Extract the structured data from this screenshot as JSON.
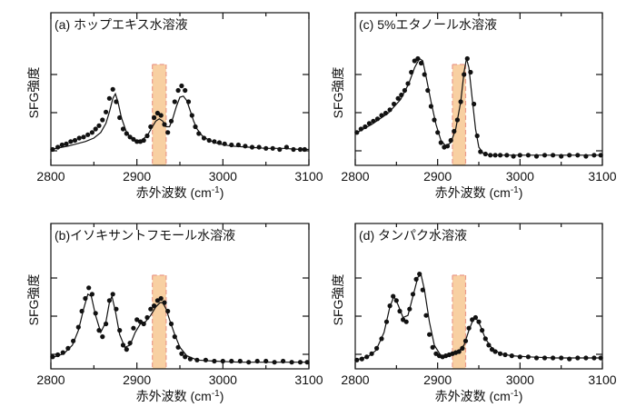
{
  "highlight": {
    "band_color": "#f7c892",
    "edge_color": "#ea9a8a"
  },
  "chart_data": [
    {
      "type": "scatter",
      "title": "(a) ホップエキス水溶液",
      "xlabel": "赤外波数 (cm",
      "xlabel_sup": "-1",
      "xlabel_end": ")",
      "ylabel": "SFG強度",
      "xlim": [
        2800,
        3100
      ],
      "ylim": [
        0,
        1
      ],
      "xticks": [
        "2800",
        "2900",
        "3000",
        "3100"
      ],
      "highlight_x": [
        2918,
        2934
      ],
      "series": [
        {
          "kind": "points",
          "x": [
            2802,
            2808,
            2813,
            2818,
            2823,
            2828,
            2833,
            2838,
            2843,
            2848,
            2852,
            2856,
            2860,
            2864,
            2868,
            2872,
            2876,
            2880,
            2884,
            2888,
            2892,
            2896,
            2900,
            2904,
            2908,
            2912,
            2916,
            2920,
            2924,
            2928,
            2932,
            2936,
            2940,
            2944,
            2948,
            2952,
            2956,
            2960,
            2964,
            2968,
            2972,
            2978,
            2984,
            2990,
            2996,
            3002,
            3010,
            3018,
            3026,
            3034,
            3042,
            3050,
            3058,
            3066,
            3074,
            3082,
            3090,
            3095
          ],
          "y": [
            0.1,
            0.12,
            0.14,
            0.15,
            0.17,
            0.18,
            0.2,
            0.21,
            0.23,
            0.25,
            0.28,
            0.31,
            0.36,
            0.43,
            0.55,
            0.63,
            0.52,
            0.38,
            0.28,
            0.24,
            0.21,
            0.19,
            0.17,
            0.17,
            0.18,
            0.22,
            0.3,
            0.38,
            0.42,
            0.4,
            0.32,
            0.25,
            0.35,
            0.52,
            0.62,
            0.66,
            0.62,
            0.52,
            0.4,
            0.3,
            0.24,
            0.2,
            0.18,
            0.17,
            0.16,
            0.15,
            0.14,
            0.14,
            0.13,
            0.12,
            0.12,
            0.11,
            0.11,
            0.1,
            0.12,
            0.1,
            0.1,
            0.1
          ]
        },
        {
          "kind": "fit",
          "x": [
            2800,
            2820,
            2840,
            2850,
            2858,
            2864,
            2868,
            2872,
            2875,
            2878,
            2882,
            2888,
            2896,
            2905,
            2912,
            2918,
            2922,
            2926,
            2930,
            2934,
            2938,
            2942,
            2946,
            2950,
            2954,
            2958,
            2962,
            2966,
            2970,
            2976,
            2984,
            2995,
            3010,
            3030,
            3050,
            3070,
            3090,
            3100
          ],
          "y": [
            0.1,
            0.13,
            0.17,
            0.2,
            0.25,
            0.33,
            0.43,
            0.55,
            0.59,
            0.52,
            0.38,
            0.25,
            0.18,
            0.18,
            0.22,
            0.3,
            0.35,
            0.37,
            0.35,
            0.3,
            0.3,
            0.38,
            0.48,
            0.56,
            0.57,
            0.53,
            0.44,
            0.35,
            0.28,
            0.22,
            0.18,
            0.15,
            0.13,
            0.12,
            0.11,
            0.11,
            0.1,
            0.1
          ]
        }
      ]
    },
    {
      "type": "scatter",
      "title": "(c)  5%エタノール水溶液",
      "xlabel": "赤外波数 (cm",
      "xlabel_sup": "-1",
      "xlabel_end": ")",
      "ylabel": "SFG強度",
      "xlim": [
        2800,
        3100
      ],
      "ylim": [
        0,
        1
      ],
      "xticks": [
        "2800",
        "2900",
        "3000",
        "3100"
      ],
      "highlight_x": [
        2918,
        2934
      ],
      "series": [
        {
          "kind": "points",
          "x": [
            2802,
            2807,
            2812,
            2817,
            2822,
            2827,
            2832,
            2837,
            2842,
            2847,
            2852,
            2856,
            2860,
            2864,
            2868,
            2872,
            2876,
            2880,
            2884,
            2888,
            2892,
            2896,
            2900,
            2904,
            2908,
            2912,
            2916,
            2920,
            2924,
            2928,
            2932,
            2936,
            2940,
            2944,
            2948,
            2952,
            2958,
            2964,
            2970,
            2976,
            2984,
            2992,
            3000,
            3010,
            3020,
            3030,
            3040,
            3050,
            3060,
            3070,
            3080,
            3090,
            3098
          ],
          "y": [
            0.25,
            0.28,
            0.3,
            0.33,
            0.35,
            0.37,
            0.4,
            0.42,
            0.45,
            0.5,
            0.55,
            0.58,
            0.62,
            0.68,
            0.78,
            0.88,
            0.9,
            0.86,
            0.76,
            0.62,
            0.48,
            0.36,
            0.25,
            0.16,
            0.12,
            0.13,
            0.18,
            0.26,
            0.36,
            0.52,
            0.76,
            0.9,
            0.78,
            0.5,
            0.22,
            0.08,
            0.06,
            0.05,
            0.05,
            0.05,
            0.05,
            0.04,
            0.05,
            0.05,
            0.04,
            0.05,
            0.05,
            0.04,
            0.05,
            0.05,
            0.04,
            0.05,
            0.05
          ]
        },
        {
          "kind": "fit",
          "x": [
            2800,
            2820,
            2840,
            2855,
            2865,
            2872,
            2878,
            2882,
            2886,
            2892,
            2898,
            2904,
            2910,
            2916,
            2922,
            2928,
            2932,
            2935,
            2938,
            2942,
            2946,
            2950,
            2956,
            2965,
            2980,
            3000,
            3050,
            3100
          ],
          "y": [
            0.24,
            0.32,
            0.42,
            0.54,
            0.68,
            0.82,
            0.9,
            0.88,
            0.74,
            0.52,
            0.32,
            0.18,
            0.13,
            0.16,
            0.28,
            0.52,
            0.78,
            0.9,
            0.82,
            0.55,
            0.28,
            0.12,
            0.06,
            0.05,
            0.05,
            0.05,
            0.05,
            0.05
          ]
        }
      ]
    },
    {
      "type": "scatter",
      "title": "(b)イソキサントフモール水溶液",
      "xlabel": "赤外波数 (cm",
      "xlabel_sup": "-1",
      "xlabel_end": ")",
      "ylabel": "SFG強度",
      "xlim": [
        2800,
        3100
      ],
      "ylim": [
        0,
        1
      ],
      "xticks": [
        "2800",
        "2900",
        "3000",
        "3100"
      ],
      "highlight_x": [
        2918,
        2934
      ],
      "series": [
        {
          "kind": "points",
          "x": [
            2802,
            2808,
            2814,
            2820,
            2826,
            2832,
            2836,
            2840,
            2844,
            2848,
            2852,
            2856,
            2860,
            2864,
            2868,
            2872,
            2876,
            2880,
            2884,
            2888,
            2892,
            2896,
            2900,
            2904,
            2908,
            2912,
            2916,
            2920,
            2924,
            2928,
            2932,
            2936,
            2940,
            2944,
            2948,
            2952,
            2956,
            2962,
            2970,
            2980,
            2990,
            3000,
            3010,
            3020,
            3030,
            3040,
            3050,
            3060,
            3070,
            3080,
            3090,
            3098
          ],
          "y": [
            0.07,
            0.09,
            0.11,
            0.15,
            0.22,
            0.35,
            0.5,
            0.62,
            0.72,
            0.66,
            0.48,
            0.32,
            0.26,
            0.38,
            0.6,
            0.66,
            0.52,
            0.32,
            0.18,
            0.14,
            0.2,
            0.34,
            0.42,
            0.4,
            0.38,
            0.44,
            0.52,
            0.55,
            0.6,
            0.62,
            0.58,
            0.5,
            0.38,
            0.26,
            0.16,
            0.1,
            0.07,
            0.05,
            0.04,
            0.04,
            0.03,
            0.03,
            0.03,
            0.03,
            0.02,
            0.03,
            0.03,
            0.02,
            0.03,
            0.02,
            0.02,
            0.02
          ]
        },
        {
          "kind": "fit",
          "x": [
            2800,
            2815,
            2825,
            2832,
            2838,
            2843,
            2847,
            2852,
            2858,
            2864,
            2868,
            2871,
            2875,
            2880,
            2886,
            2892,
            2898,
            2904,
            2910,
            2916,
            2922,
            2927,
            2930,
            2934,
            2938,
            2944,
            2950,
            2958,
            2970,
            2990,
            3020,
            3060,
            3100
          ],
          "y": [
            0.06,
            0.1,
            0.18,
            0.32,
            0.52,
            0.66,
            0.64,
            0.46,
            0.3,
            0.4,
            0.58,
            0.64,
            0.5,
            0.28,
            0.16,
            0.18,
            0.3,
            0.38,
            0.4,
            0.46,
            0.54,
            0.58,
            0.58,
            0.52,
            0.42,
            0.28,
            0.16,
            0.08,
            0.04,
            0.03,
            0.02,
            0.02,
            0.02
          ]
        }
      ]
    },
    {
      "type": "scatter",
      "title": "(d)  タンパク水溶液",
      "xlabel": "赤外波数 (cm",
      "xlabel_sup": "-1",
      "xlabel_end": ")",
      "ylabel": "SFG強度",
      "xlim": [
        2800,
        3100
      ],
      "ylim": [
        0,
        1
      ],
      "xticks": [
        "2800",
        "2900",
        "3000",
        "3100"
      ],
      "highlight_x": [
        2918,
        2934
      ],
      "series": [
        {
          "kind": "points",
          "x": [
            2802,
            2808,
            2814,
            2820,
            2826,
            2832,
            2838,
            2842,
            2846,
            2850,
            2854,
            2858,
            2862,
            2866,
            2870,
            2874,
            2878,
            2882,
            2886,
            2890,
            2894,
            2898,
            2902,
            2906,
            2910,
            2914,
            2918,
            2922,
            2926,
            2930,
            2934,
            2938,
            2942,
            2946,
            2950,
            2954,
            2958,
            2962,
            2966,
            2970,
            2976,
            2982,
            2990,
            3000,
            3010,
            3020,
            3030,
            3040,
            3050,
            3060,
            3070,
            3080,
            3090,
            3098
          ],
          "y": [
            0.04,
            0.05,
            0.07,
            0.1,
            0.15,
            0.24,
            0.4,
            0.55,
            0.64,
            0.6,
            0.5,
            0.42,
            0.4,
            0.52,
            0.66,
            0.8,
            0.85,
            0.7,
            0.46,
            0.28,
            0.16,
            0.1,
            0.08,
            0.07,
            0.08,
            0.09,
            0.1,
            0.11,
            0.12,
            0.15,
            0.22,
            0.34,
            0.42,
            0.44,
            0.4,
            0.32,
            0.24,
            0.18,
            0.14,
            0.12,
            0.1,
            0.09,
            0.08,
            0.07,
            0.07,
            0.06,
            0.06,
            0.06,
            0.06,
            0.05,
            0.06,
            0.06,
            0.06,
            0.06
          ]
        },
        {
          "kind": "fit",
          "x": [
            2800,
            2815,
            2825,
            2835,
            2842,
            2847,
            2852,
            2858,
            2864,
            2870,
            2876,
            2880,
            2884,
            2890,
            2896,
            2904,
            2914,
            2924,
            2932,
            2938,
            2943,
            2947,
            2952,
            2958,
            2966,
            2976,
            2990,
            3010,
            3040,
            3070,
            3100
          ],
          "y": [
            0.04,
            0.07,
            0.13,
            0.3,
            0.54,
            0.64,
            0.56,
            0.44,
            0.46,
            0.64,
            0.82,
            0.84,
            0.7,
            0.4,
            0.18,
            0.08,
            0.08,
            0.11,
            0.18,
            0.32,
            0.42,
            0.43,
            0.36,
            0.24,
            0.15,
            0.1,
            0.08,
            0.07,
            0.06,
            0.06,
            0.06
          ]
        }
      ]
    }
  ]
}
